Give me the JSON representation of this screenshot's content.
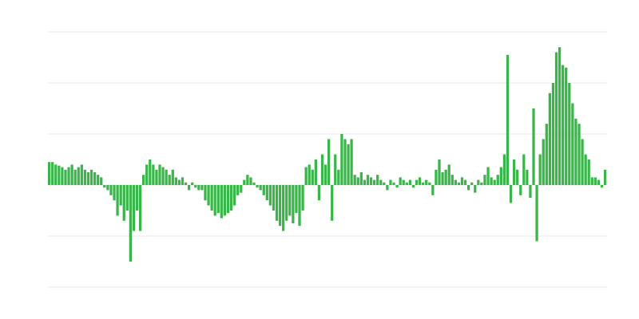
{
  "chart_data": {
    "type": "bar",
    "color": "#39b54a",
    "grid": true,
    "ylim": [
      -2,
      3
    ],
    "yticks": [
      -2,
      -1,
      0,
      1,
      2,
      3
    ],
    "values": [
      0.45,
      0.45,
      0.4,
      0.38,
      0.35,
      0.3,
      0.35,
      0.4,
      0.3,
      0.35,
      0.4,
      0.3,
      0.25,
      0.3,
      0.25,
      0.2,
      0.15,
      -0.05,
      -0.1,
      -0.2,
      -0.3,
      -0.6,
      -0.4,
      -0.7,
      -0.5,
      -1.5,
      -0.9,
      -0.5,
      -0.9,
      0.2,
      0.4,
      0.5,
      0.4,
      0.3,
      0.4,
      0.35,
      0.3,
      0.2,
      0.3,
      0.15,
      0.1,
      0.15,
      0.05,
      -0.1,
      0.05,
      -0.05,
      -0.1,
      -0.1,
      -0.3,
      -0.4,
      -0.5,
      -0.6,
      -0.55,
      -0.65,
      -0.6,
      -0.55,
      -0.5,
      -0.4,
      -0.2,
      -0.15,
      0.1,
      0.2,
      0.15,
      0.05,
      -0.05,
      -0.1,
      -0.2,
      -0.3,
      -0.4,
      -0.5,
      -0.7,
      -0.8,
      -0.9,
      -0.7,
      -0.6,
      -0.75,
      -0.55,
      -0.8,
      -0.5,
      0.35,
      0.4,
      0.3,
      0.5,
      -0.3,
      0.6,
      0.4,
      0.9,
      -0.7,
      0.6,
      0.3,
      1.0,
      0.9,
      0.8,
      0.9,
      0.2,
      0.15,
      0.25,
      0.1,
      0.2,
      0.15,
      0.1,
      0.2,
      0.1,
      0.05,
      -0.1,
      0.1,
      0.05,
      -0.05,
      0.15,
      0.1,
      0.05,
      0.1,
      -0.05,
      0.1,
      0.15,
      0.05,
      0.1,
      0.05,
      -0.2,
      0.3,
      0.5,
      0.25,
      0.3,
      0.4,
      0.2,
      0.1,
      0.05,
      0.15,
      0.1,
      -0.1,
      0.05,
      -0.15,
      0.1,
      0.05,
      0.2,
      0.35,
      0.15,
      0.1,
      0.2,
      0.35,
      0.6,
      2.55,
      -0.35,
      0.5,
      0.3,
      -0.2,
      0.6,
      0.3,
      -0.25,
      1.5,
      -1.1,
      0.6,
      0.9,
      1.2,
      1.8,
      2.0,
      2.6,
      2.7,
      2.35,
      2.3,
      2.0,
      1.6,
      1.3,
      1.2,
      0.9,
      0.6,
      0.5,
      0.15,
      0.15,
      0.1,
      -0.05,
      0.3
    ]
  }
}
